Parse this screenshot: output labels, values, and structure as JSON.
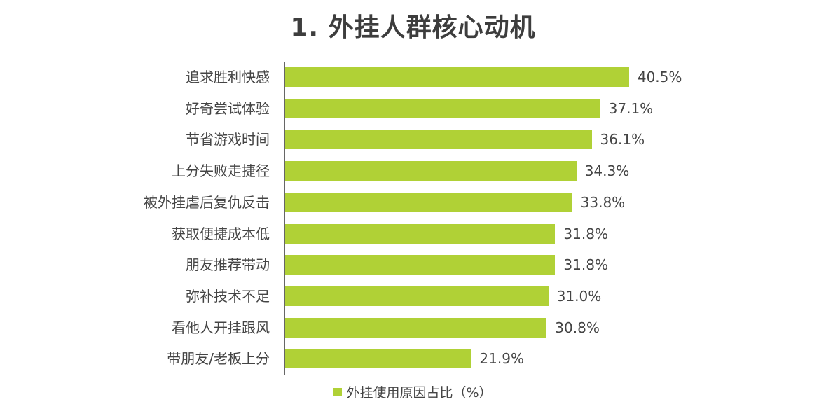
{
  "header": {
    "title": "1. 外挂人群核心动机"
  },
  "legend": {
    "label": "外挂使用原因占比（%）",
    "color": "#b0d136"
  },
  "bars": [
    {
      "label": "追求胜利快感",
      "value": 40.5,
      "value_label": "40.5%"
    },
    {
      "label": "好奇尝试体验",
      "value": 37.1,
      "value_label": "37.1%"
    },
    {
      "label": "节省游戏时间",
      "value": 36.1,
      "value_label": "36.1%"
    },
    {
      "label": "上分失败走捷径",
      "value": 34.3,
      "value_label": "34.3%"
    },
    {
      "label": "被外挂虐后复仇反击",
      "value": 33.8,
      "value_label": "33.8%"
    },
    {
      "label": "获取便捷成本低",
      "value": 31.8,
      "value_label": "31.8%"
    },
    {
      "label": "朋友推荐带动",
      "value": 31.8,
      "value_label": "31.8%"
    },
    {
      "label": "弥补技术不足",
      "value": 31.0,
      "value_label": "31.0%"
    },
    {
      "label": "看他人开挂跟风",
      "value": 30.8,
      "value_label": "30.8%"
    },
    {
      "label": "带朋友/老板上分",
      "value": 21.9,
      "value_label": "21.9%"
    }
  ],
  "chart_data": {
    "type": "bar",
    "orientation": "horizontal",
    "title": "1. 外挂人群核心动机",
    "categories": [
      "追求胜利快感",
      "好奇尝试体验",
      "节省游戏时间",
      "上分失败走捷径",
      "被外挂虐后复仇反击",
      "获取便捷成本低",
      "朋友推荐带动",
      "弥补技术不足",
      "看他人开挂跟风",
      "带朋友/老板上分"
    ],
    "series": [
      {
        "name": "外挂使用原因占比（%）",
        "values": [
          40.5,
          37.1,
          36.1,
          34.3,
          33.8,
          31.8,
          31.8,
          31.0,
          30.8,
          21.9
        ],
        "color": "#b0d136"
      }
    ],
    "xlabel": "",
    "ylabel": "",
    "data_labels": true,
    "grid": false,
    "legend_position": "bottom",
    "unit": "%"
  }
}
